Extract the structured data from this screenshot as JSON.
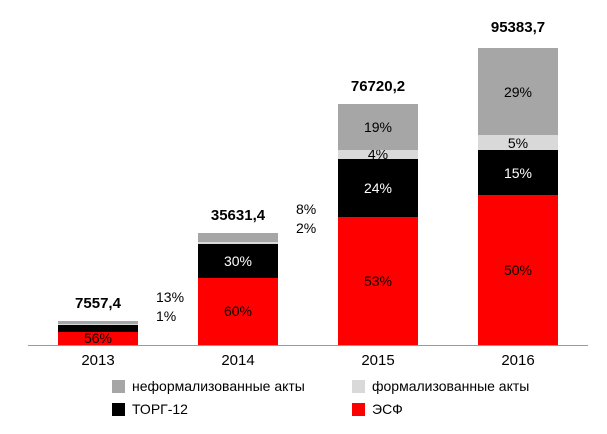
{
  "chart_data": {
    "type": "bar",
    "subtype": "stacked-percent-labels",
    "title": "",
    "xlabel": "",
    "ylabel": "",
    "grid": false,
    "legend_position": "bottom",
    "categories": [
      "2013",
      "2014",
      "2015",
      "2016"
    ],
    "totals": {
      "values": [
        7557.4,
        35631.4,
        76720.2,
        95383.7
      ],
      "labels": [
        "7557,4",
        "35631,4",
        "76720,2",
        "95383,7"
      ]
    },
    "max_value": 95383.7,
    "series": [
      {
        "name": "ЭСФ",
        "color": "#FF0000",
        "label_color": "#000000",
        "pct": [
          56,
          60,
          53,
          50
        ],
        "pct_labels": [
          "56%",
          "60%",
          "53%",
          "50%"
        ],
        "placement": [
          "inside",
          "inside",
          "inside",
          "inside"
        ]
      },
      {
        "name": "ТОРГ-12",
        "color": "#000000",
        "label_color": "#FFFFFF",
        "pct": [
          30,
          30,
          24,
          15
        ],
        "pct_labels": [
          "",
          "30%",
          "24%",
          "15%"
        ],
        "placement": [
          "none",
          "inside",
          "inside",
          "inside"
        ]
      },
      {
        "name": "формализованные акты",
        "color": "#D9D9D9",
        "label_color": "#000000",
        "pct": [
          1,
          2,
          4,
          5
        ],
        "pct_labels": [
          "1%",
          "2%",
          "4%",
          "5%"
        ],
        "placement": [
          "callout",
          "callout",
          "inside",
          "inside"
        ]
      },
      {
        "name": "неформализованные акты",
        "color": "#A6A6A6",
        "label_color": "#000000",
        "pct": [
          13,
          8,
          19,
          29
        ],
        "pct_labels": [
          "13%",
          "8%",
          "19%",
          "29%"
        ],
        "placement": [
          "callout",
          "callout",
          "inside",
          "inside"
        ]
      }
    ],
    "legend": [
      {
        "label": "неформализованные акты",
        "color": "#A6A6A6"
      },
      {
        "label": "формализованные акты",
        "color": "#D9D9D9"
      },
      {
        "label": "ТОРГ-12",
        "color": "#000000"
      },
      {
        "label": "ЭСФ",
        "color": "#FF0000"
      }
    ]
  }
}
